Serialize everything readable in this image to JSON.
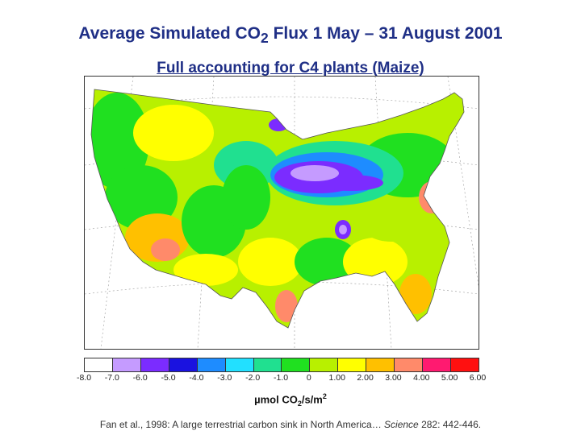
{
  "title": {
    "prefix": "Average Simulated CO",
    "subscript": "2",
    "suffix": " Flux  1 May – 31 August 2001"
  },
  "subtitle": "Full accounting for C4 plants (Maize)",
  "legend": {
    "colors": [
      "#ffffff",
      "#c59bff",
      "#7b2cff",
      "#1a12e0",
      "#1e8cff",
      "#22e0ff",
      "#20e090",
      "#20e020",
      "#b8f000",
      "#ffff00",
      "#ffc000",
      "#ff8a6a",
      "#ff1a70",
      "#ff1010"
    ],
    "ticks": [
      "-8.0",
      "-7.0",
      "-6.0",
      "-5.0",
      "-4.0",
      "-3.0",
      "-2.0",
      "-1.0",
      "0",
      "1.00",
      "2.00",
      "3.00",
      "4.00",
      "5.00",
      "6.00"
    ]
  },
  "unit": {
    "prefix": "µmol CO",
    "sub": "2",
    "middle": "/s/m",
    "sup": "2"
  },
  "citation": {
    "before": "Fan et al., 1998: A large terrestrial carbon sink in North America… ",
    "journal": "Science",
    "after": " 282: 442-446."
  }
}
